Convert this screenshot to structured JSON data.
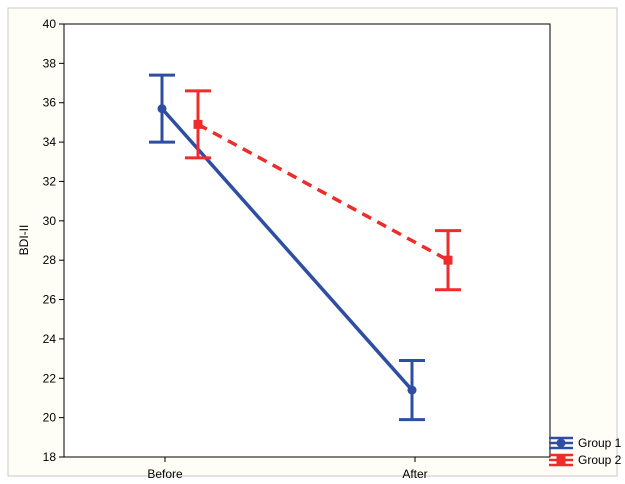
{
  "chart_data": {
    "type": "line",
    "title": "",
    "xlabel": "",
    "ylabel": "BDI-II",
    "categories": [
      "Before",
      "After"
    ],
    "ylim": [
      18,
      40
    ],
    "yticks": [
      18,
      20,
      22,
      24,
      26,
      28,
      30,
      32,
      34,
      36,
      38,
      40
    ],
    "grid": false,
    "legend_position": "bottom-right",
    "series": [
      {
        "name": "Group 1",
        "color": "#2f4ea3",
        "marker": "circle",
        "line_style": "solid",
        "values": [
          35.7,
          21.4
        ],
        "error_lower": [
          34.0,
          19.9
        ],
        "error_upper": [
          37.4,
          22.9
        ]
      },
      {
        "name": "Group 2",
        "color": "#ee2c2c",
        "marker": "square",
        "line_style": "dashed",
        "values": [
          34.9,
          28.0
        ],
        "error_lower": [
          33.2,
          26.5
        ],
        "error_upper": [
          36.6,
          29.5
        ]
      }
    ]
  }
}
